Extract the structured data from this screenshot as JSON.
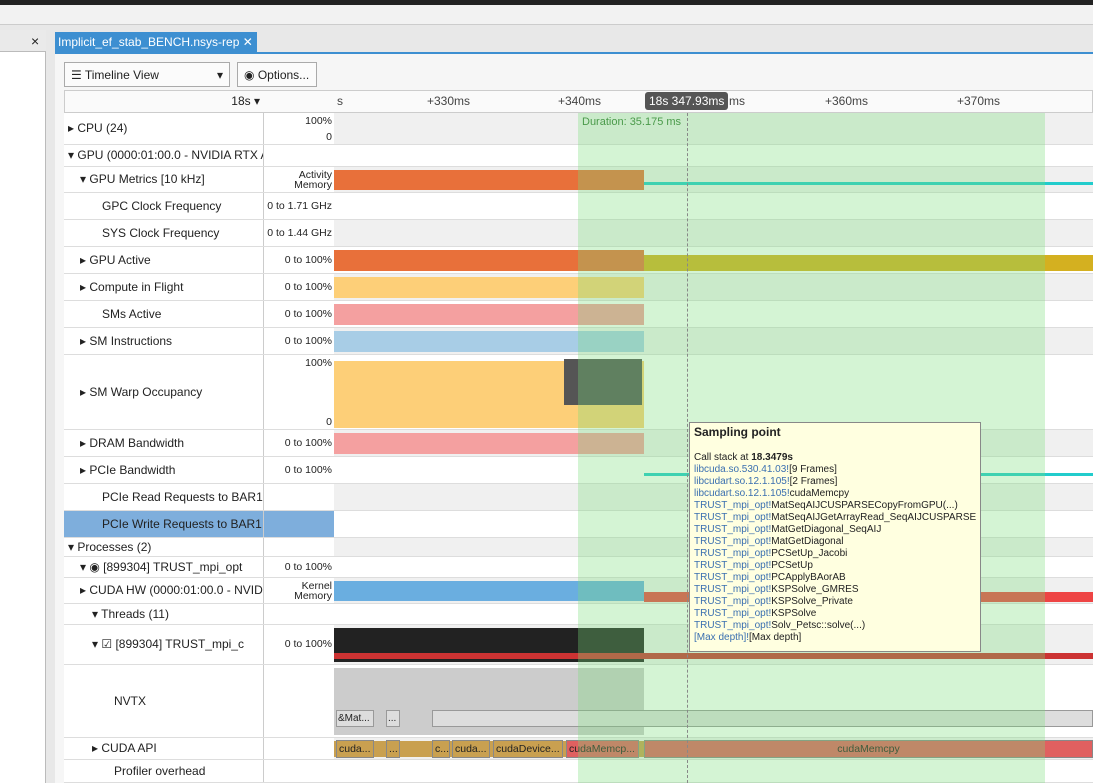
{
  "tab": {
    "title": "Implicit_ef_stab_BENCH.nsys-rep"
  },
  "toolbar": {
    "view": "Timeline View",
    "options": "Options..."
  },
  "ruler": {
    "start": "18s",
    "ticks": [
      "s",
      "+330ms",
      "+340ms",
      "ms",
      "+360ms",
      "+370ms"
    ],
    "cursor": "18s 347.93ms",
    "duration": "Duration: 35.175 ms"
  },
  "rows": [
    {
      "label": "CPU (24)",
      "scale": [
        "100%",
        "0"
      ]
    },
    {
      "label": "GPU (0000:01:00.0 - NVIDIA RTX A"
    },
    {
      "label": "GPU Metrics [10 kHz]",
      "scale": [
        "Activity",
        "Memory"
      ]
    },
    {
      "label": "GPC Clock Frequency",
      "scale": [
        "0 to 1.71 GHz"
      ]
    },
    {
      "label": "SYS Clock Frequency",
      "scale": [
        "0 to 1.44 GHz"
      ]
    },
    {
      "label": "GPU Active",
      "scale": [
        "0 to 100%"
      ]
    },
    {
      "label": "Compute in Flight",
      "scale": [
        "0 to 100%"
      ]
    },
    {
      "label": "SMs Active",
      "scale": [
        "0 to 100%"
      ]
    },
    {
      "label": "SM Instructions",
      "scale": [
        "0 to 100%"
      ]
    },
    {
      "label": "SM Warp Occupancy",
      "scale": [
        "100%",
        "0"
      ]
    },
    {
      "label": "DRAM Bandwidth",
      "scale": [
        "0 to 100%"
      ]
    },
    {
      "label": "PCIe Bandwidth",
      "scale": [
        "0 to 100%"
      ]
    },
    {
      "label": "PCIe Read Requests to BAR1"
    },
    {
      "label": "PCIe Write Requests to BAR1"
    },
    {
      "label": "Processes (2)"
    },
    {
      "label": "[899304] TRUST_mpi_opt",
      "scale": [
        "0 to 100%"
      ]
    },
    {
      "label": "CUDA HW (0000:01:00.0 - NVID",
      "scale": [
        "Kernel",
        "Memory"
      ]
    },
    {
      "label": "Threads (11)"
    },
    {
      "label": "[899304] TRUST_mpi_c",
      "scale": [
        "0 to 100%"
      ]
    },
    {
      "label": "NVTX"
    },
    {
      "label": "CUDA API"
    },
    {
      "label": "Profiler overhead"
    }
  ],
  "nvtx": [
    "&Mat...",
    "..."
  ],
  "cuda_api": [
    "cuda...",
    "...",
    "c...",
    "cuda...",
    "cudaDevice...",
    "cudaMemcp...",
    "cudaMemcpy"
  ],
  "tooltip": {
    "title": "Sampling point",
    "call_stack": "Call stack at ",
    "time": "18.3479s",
    "frames": [
      {
        "lib": "libcuda.so.530.41.03!",
        "func": "[9 Frames]"
      },
      {
        "lib": "libcudart.so.12.1.105!",
        "func": "[2 Frames]"
      },
      {
        "lib": "libcudart.so.12.1.105!",
        "func": "cudaMemcpy"
      },
      {
        "lib": "TRUST_mpi_opt!",
        "func": "MatSeqAIJCUSPARSECopyFromGPU(...)"
      },
      {
        "lib": "TRUST_mpi_opt!",
        "func": "MatSeqAIJGetArrayRead_SeqAIJCUSPARSE(...)"
      },
      {
        "lib": "TRUST_mpi_opt!",
        "func": "MatGetDiagonal_SeqAIJ"
      },
      {
        "lib": "TRUST_mpi_opt!",
        "func": "MatGetDiagonal"
      },
      {
        "lib": "TRUST_mpi_opt!",
        "func": "PCSetUp_Jacobi"
      },
      {
        "lib": "TRUST_mpi_opt!",
        "func": "PCSetUp"
      },
      {
        "lib": "TRUST_mpi_opt!",
        "func": "PCApplyBAorAB"
      },
      {
        "lib": "TRUST_mpi_opt!",
        "func": "KSPSolve_GMRES"
      },
      {
        "lib": "TRUST_mpi_opt!",
        "func": "KSPSolve_Private"
      },
      {
        "lib": "TRUST_mpi_opt!",
        "func": "KSPSolve"
      },
      {
        "lib": "TRUST_mpi_opt!",
        "func": "Solv_Petsc::solve(...)"
      },
      {
        "lib": "[Max depth]!",
        "func": "[Max depth]"
      }
    ]
  }
}
